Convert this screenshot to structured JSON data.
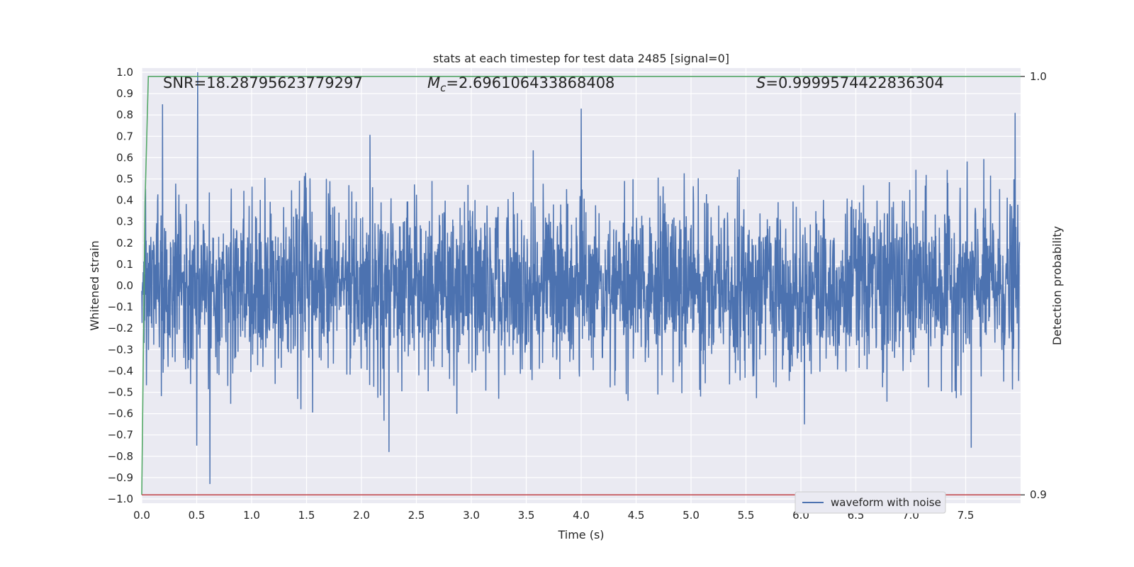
{
  "chart_data": {
    "type": "line",
    "title": "stats at each timestep for test data 2485 [signal=0]",
    "xlabel": "Time (s)",
    "ylabel": "Whitened strain",
    "ylabel_right": "Detection probability",
    "xlim": [
      0.0,
      8.0
    ],
    "ylim": [
      -1.02,
      1.02
    ],
    "ylim_right": [
      0.898,
      1.002
    ],
    "x_ticks": [
      "0.0",
      "0.5",
      "1.0",
      "1.5",
      "2.0",
      "2.5",
      "3.0",
      "3.5",
      "4.0",
      "4.5",
      "5.0",
      "5.5",
      "6.0",
      "6.5",
      "7.0",
      "7.5"
    ],
    "x_tick_values": [
      0.0,
      0.5,
      1.0,
      1.5,
      2.0,
      2.5,
      3.0,
      3.5,
      4.0,
      4.5,
      5.0,
      5.5,
      6.0,
      6.5,
      7.0,
      7.5
    ],
    "y_ticks": [
      "1.0",
      "0.9",
      "0.8",
      "0.7",
      "0.6",
      "0.5",
      "0.4",
      "0.3",
      "0.2",
      "0.1",
      "0.0",
      "−0.1",
      "−0.2",
      "−0.3",
      "−0.4",
      "−0.5",
      "−0.6",
      "−0.7",
      "−0.8",
      "−0.9",
      "−1.0"
    ],
    "y_tick_values": [
      1.0,
      0.9,
      0.8,
      0.7,
      0.6,
      0.5,
      0.4,
      0.3,
      0.2,
      0.1,
      0.0,
      -0.1,
      -0.2,
      -0.3,
      -0.4,
      -0.5,
      -0.6,
      -0.7,
      -0.8,
      -0.9,
      -1.0
    ],
    "y_ticks_right": [
      "1.0",
      "0.9"
    ],
    "y_tick_values_right": [
      1.0,
      0.9
    ],
    "grid": true,
    "legend_position": "lower-right",
    "annotations": {
      "snr": "SNR=18.28795623779297",
      "mc_symbol": "M",
      "mc_sub": "c",
      "mc_value": "=2.696106433868408",
      "s_symbol": "S",
      "s_value": "=0.9999574422836304"
    },
    "series": [
      {
        "name": "waveform with noise",
        "color": "#4c72b0",
        "description": "noisy whitened strain, approx. range -0.93 to 1.0",
        "peaks": [
          {
            "x": 0.51,
            "y": 1.0
          },
          {
            "x": 0.19,
            "y": 0.85
          },
          {
            "x": 4.0,
            "y": 0.83
          },
          {
            "x": 7.95,
            "y": 0.81
          },
          {
            "x": 0.62,
            "y": -0.93
          },
          {
            "x": 0.5,
            "y": -0.75
          },
          {
            "x": 2.25,
            "y": -0.78
          },
          {
            "x": 7.55,
            "y": -0.76
          }
        ]
      },
      {
        "color": "#55a868",
        "axis": "right",
        "x": [
          0.0,
          0.03,
          0.06,
          0.1,
          8.0
        ],
        "values": [
          0.9,
          0.97,
          1.0,
          1.0,
          1.0
        ]
      },
      {
        "color": "#c44e52",
        "axis": "right",
        "x": [
          0.0,
          8.0
        ],
        "values": [
          0.9,
          0.9
        ]
      }
    ]
  }
}
